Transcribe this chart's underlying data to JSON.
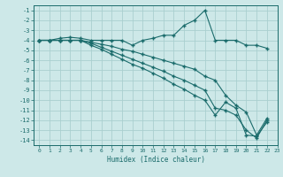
{
  "xlabel": "Humidex (Indice chaleur)",
  "bg_color": "#cde8e8",
  "grid_color": "#aacfcf",
  "line_color": "#1a6b6b",
  "xlim": [
    -0.5,
    23
  ],
  "ylim": [
    -14.5,
    -0.5
  ],
  "xticks": [
    0,
    1,
    2,
    3,
    4,
    5,
    6,
    7,
    8,
    9,
    10,
    11,
    12,
    13,
    14,
    15,
    16,
    17,
    18,
    19,
    20,
    21,
    22,
    23
  ],
  "yticks": [
    -1,
    -2,
    -3,
    -4,
    -5,
    -6,
    -7,
    -8,
    -9,
    -10,
    -11,
    -12,
    -13,
    -14
  ],
  "s1_x": [
    0,
    1,
    2,
    3,
    4,
    5,
    6,
    7,
    8,
    9,
    10,
    11,
    12,
    13,
    14,
    15,
    16,
    17,
    18,
    19,
    20,
    21,
    22
  ],
  "s1_y": [
    -4,
    -4,
    -3.8,
    -3.7,
    -3.8,
    -4,
    -4,
    -4,
    -4,
    -4.5,
    -4,
    -3.8,
    -3.5,
    -3.5,
    -2.5,
    -2,
    -1,
    -4,
    -4,
    -4,
    -4.5,
    -4.5,
    -4.8
  ],
  "s2_x": [
    0,
    1,
    2,
    3,
    4,
    5,
    6,
    7,
    8,
    9,
    10,
    11,
    12,
    13,
    14,
    15,
    16,
    17,
    18,
    19,
    20,
    21,
    22
  ],
  "s2_y": [
    -4,
    -4,
    -4,
    -4,
    -4,
    -4.2,
    -4.4,
    -4.6,
    -4.9,
    -5.1,
    -5.4,
    -5.7,
    -6.0,
    -6.3,
    -6.6,
    -6.9,
    -7.6,
    -8.0,
    -9.5,
    -10.5,
    -11.2,
    -13.5,
    -11.8
  ],
  "s3_x": [
    0,
    1,
    2,
    3,
    4,
    5,
    6,
    7,
    8,
    9,
    10,
    11,
    12,
    13,
    14,
    15,
    16,
    17,
    18,
    19,
    20,
    21,
    22
  ],
  "s3_y": [
    -4,
    -4,
    -4,
    -4,
    -4,
    -4.3,
    -4.7,
    -5.1,
    -5.5,
    -5.9,
    -6.3,
    -6.7,
    -7.1,
    -7.6,
    -8.0,
    -8.5,
    -9.0,
    -10.8,
    -11.0,
    -11.5,
    -13.0,
    -13.8,
    -12.0
  ],
  "s4_x": [
    0,
    1,
    2,
    3,
    4,
    5,
    6,
    7,
    8,
    9,
    10,
    11,
    12,
    13,
    14,
    15,
    16,
    17,
    18,
    19,
    20,
    21,
    22
  ],
  "s4_y": [
    -4,
    -4,
    -4,
    -4,
    -4,
    -4.5,
    -4.9,
    -5.4,
    -5.9,
    -6.4,
    -6.8,
    -7.3,
    -7.8,
    -8.4,
    -8.9,
    -9.5,
    -10.0,
    -11.5,
    -10.2,
    -10.8,
    -13.5,
    -13.6,
    -12.2
  ]
}
